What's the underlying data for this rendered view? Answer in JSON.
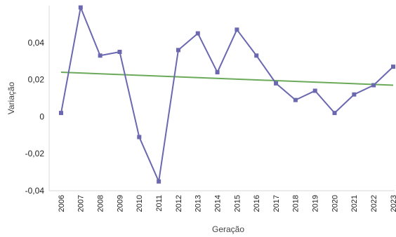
{
  "chart_data": {
    "type": "line",
    "title": "",
    "xlabel": "Geração",
    "ylabel": "Variação",
    "x": [
      "2006",
      "2007",
      "2008",
      "2009",
      "2010",
      "2011",
      "2012",
      "2013",
      "2014",
      "2015",
      "2016",
      "2017",
      "2018",
      "2019",
      "2020",
      "2021",
      "2022",
      "2023"
    ],
    "series": [
      {
        "name": "",
        "color": "#6b68b0",
        "values": [
          0.002,
          0.059,
          0.033,
          0.035,
          -0.011,
          -0.035,
          0.036,
          0.045,
          0.024,
          0.047,
          0.033,
          0.018,
          0.009,
          0.014,
          0.002,
          0.012,
          0.017,
          0.027
        ]
      }
    ],
    "trendline": {
      "color": "#6aaa5a",
      "start": 0.024,
      "end": 0.017
    },
    "y_ticks": [
      {
        "value": 0.04,
        "label": "0,04"
      },
      {
        "value": 0.02,
        "label": "0,02"
      },
      {
        "value": 0,
        "label": "0"
      },
      {
        "value": -0.02,
        "label": "-0,02"
      },
      {
        "value": -0.04,
        "label": "-0,04"
      }
    ],
    "ylim": [
      -0.04,
      0.06
    ],
    "grid": false,
    "legend": "none"
  }
}
